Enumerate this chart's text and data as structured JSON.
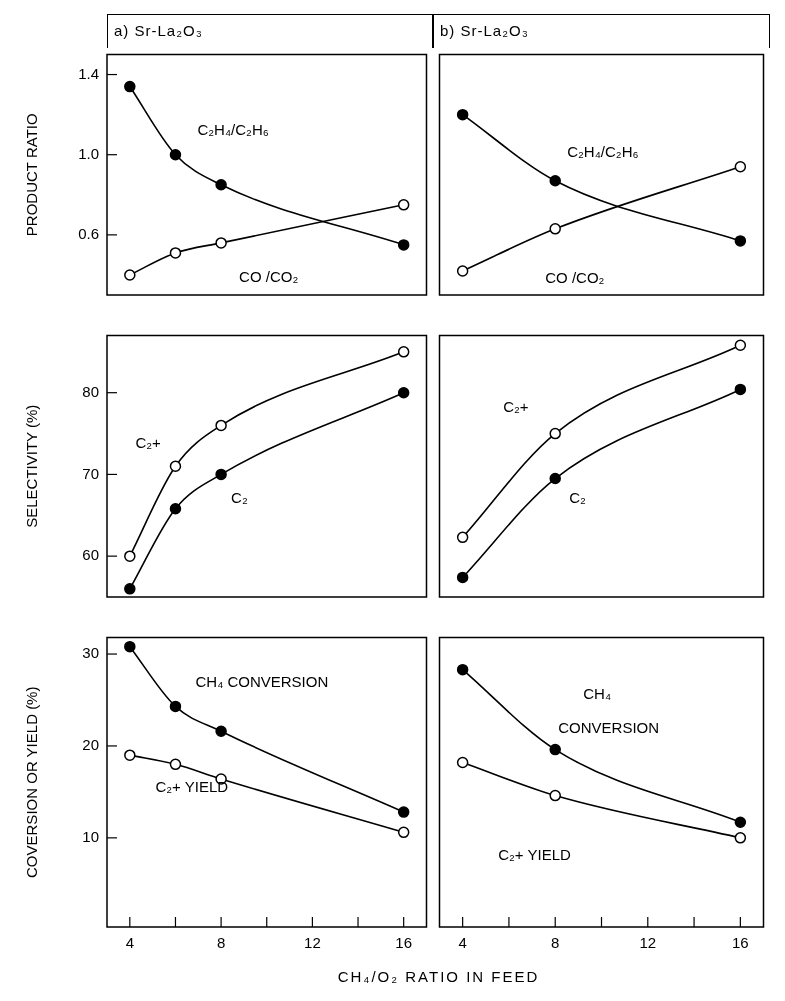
{
  "chart_data": [
    {
      "type": "line",
      "title": "a) Sr-La₂O₃",
      "ylabel": "PRODUCT RATIO",
      "xlim": [
        3,
        17
      ],
      "ylim": [
        0.3,
        1.5
      ],
      "yticks": [
        1.4,
        {
          "value": 1.0,
          "label": "1.0"
        },
        0.6
      ],
      "tick_labels": "y",
      "marker": "circle",
      "grid": false,
      "legend": false,
      "series": [
        {
          "name": "C₂H₄/C₂H₆",
          "color": "#000000",
          "x": [
            4,
            6,
            8,
            16
          ],
          "values": [
            1.34,
            1.0,
            0.85,
            0.55
          ]
        },
        {
          "name": "CO /CO₂",
          "color": "#000000",
          "x": [
            4,
            6,
            8,
            16
          ],
          "values": [
            0.4,
            0.51,
            0.56,
            0.75
          ]
        }
      ]
    },
    {
      "type": "line",
      "title": "b) Sr-La₂O₃",
      "xlim": [
        3,
        17
      ],
      "ylim": [
        0.3,
        1.5
      ],
      "yticks": [
        1.4,
        1,
        0.6
      ],
      "tick_labels": false,
      "marker": "circle",
      "grid": false,
      "legend": false,
      "series": [
        {
          "name": "C₂H₄/C₂H₆",
          "color": "#000000",
          "x": [
            4,
            8,
            16
          ],
          "values": [
            1.2,
            0.87,
            0.57
          ]
        },
        {
          "name": "CO /CO₂",
          "color": "#000000",
          "x": [
            4,
            8,
            16
          ],
          "values": [
            0.42,
            0.63,
            0.94
          ]
        }
      ]
    },
    {
      "type": "line",
      "ylabel": "SELECTIVITY (%)",
      "xlim": [
        3,
        17
      ],
      "ylim": [
        55,
        87
      ],
      "yticks": [
        60,
        70,
        80
      ],
      "tick_labels": "y",
      "marker": "circle",
      "grid": false,
      "legend": false,
      "series": [
        {
          "name": "C₂",
          "color": "#000000",
          "x": [
            4,
            6,
            8,
            16
          ],
          "values": [
            56,
            65.8,
            70,
            80
          ]
        },
        {
          "name": "C₂+",
          "color": "#000000",
          "x": [
            4,
            6,
            8,
            16
          ],
          "values": [
            60,
            71,
            76,
            85
          ]
        }
      ]
    },
    {
      "type": "line",
      "xlim": [
        3,
        17
      ],
      "ylim": [
        55,
        87
      ],
      "yticks": [
        60,
        70,
        80
      ],
      "tick_labels": false,
      "marker": "circle",
      "grid": false,
      "legend": false,
      "series": [
        {
          "name": "C₂",
          "color": "#000000",
          "x": [
            4,
            8,
            16
          ],
          "values": [
            57.4,
            69.5,
            80.4
          ]
        },
        {
          "name": "C₂+",
          "color": "#000000",
          "x": [
            4,
            8,
            16
          ],
          "values": [
            62.3,
            75,
            85.8
          ]
        }
      ]
    },
    {
      "type": "line",
      "ylabel": "COVERSION OR YIELD (%)",
      "xlabel": "CH₄/O₂ RATIO IN FEED",
      "xlim": [
        3,
        17
      ],
      "ylim": [
        0.3,
        31.8
      ],
      "xticks": [
        4,
        {
          "value": 6,
          "label": null
        },
        8,
        {
          "value": 10,
          "label": null
        },
        12,
        {
          "value": 14,
          "label": null
        },
        16
      ],
      "yticks": [
        10,
        20,
        30
      ],
      "marker": "circle",
      "grid": false,
      "legend": false,
      "series": [
        {
          "name": "CH₄ CONVERSION",
          "color": "#000000",
          "x": [
            4,
            6,
            8,
            16
          ],
          "values": [
            30.8,
            24.3,
            21.6,
            12.8
          ]
        },
        {
          "name": "C₂+ YIELD",
          "color": "#000000",
          "x": [
            4,
            6,
            8,
            16
          ],
          "values": [
            19,
            18,
            16.4,
            10.6
          ]
        }
      ]
    },
    {
      "type": "line",
      "xlim": [
        3,
        17
      ],
      "ylim": [
        0.3,
        31.8
      ],
      "xticks": [
        4,
        {
          "value": 6,
          "label": null
        },
        8,
        {
          "value": 10,
          "label": null
        },
        12,
        {
          "value": 14,
          "label": null
        },
        16
      ],
      "yticks": [
        10,
        20,
        30
      ],
      "tick_labels": "x",
      "marker": "circle",
      "grid": false,
      "legend": false,
      "series": [
        {
          "name": "CH₄ CONVERSION",
          "color": "#000000",
          "x": [
            4,
            8,
            16
          ],
          "values": [
            28.3,
            19.6,
            11.7
          ]
        },
        {
          "name": "C₂+ YIELD",
          "color": "#000000",
          "x": [
            4,
            8,
            16
          ],
          "values": [
            18.2,
            14.6,
            10.0
          ]
        }
      ]
    }
  ]
}
